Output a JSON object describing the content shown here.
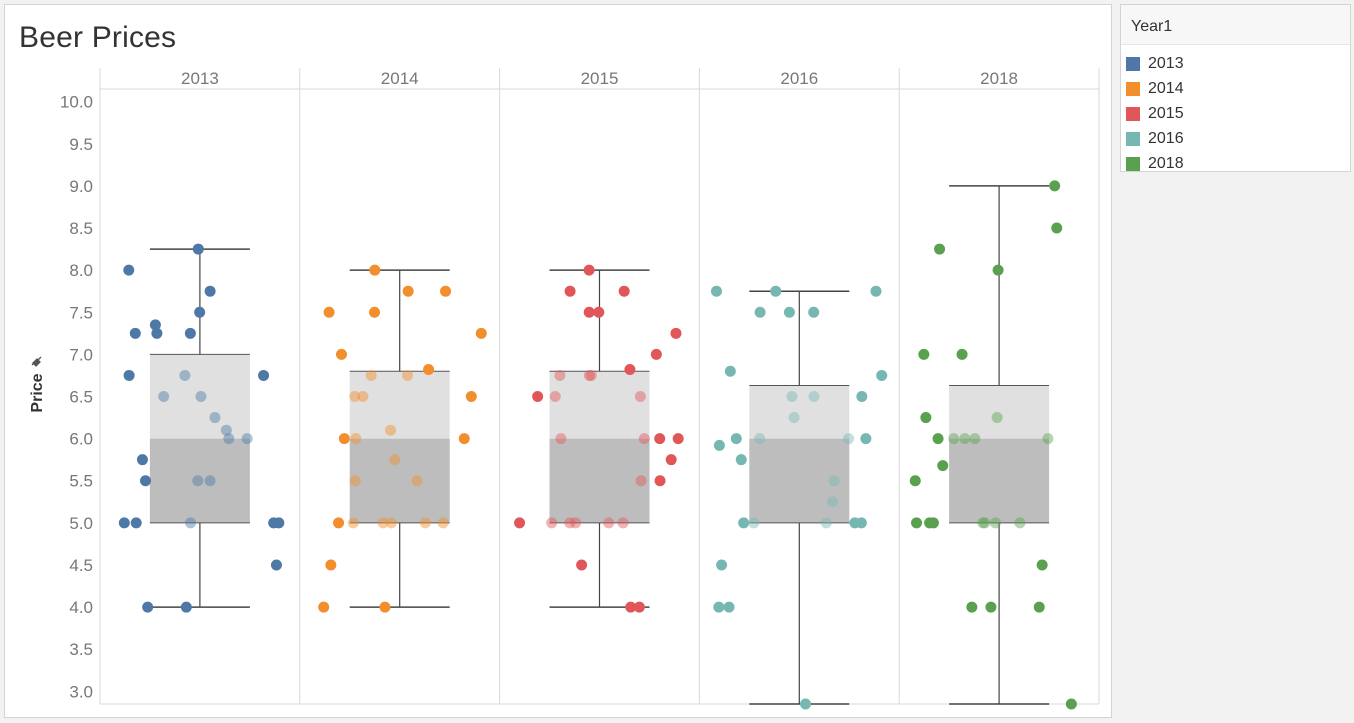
{
  "title": "Beer Prices",
  "legend": {
    "title": "Year1",
    "items": [
      {
        "label": "2013",
        "color": "#4e79a7"
      },
      {
        "label": "2014",
        "color": "#f28e2b"
      },
      {
        "label": "2015",
        "color": "#e15759"
      },
      {
        "label": "2016",
        "color": "#76b7b2"
      },
      {
        "label": "2018",
        "color": "#59a14f"
      }
    ]
  },
  "chart_data": {
    "type": "scatter",
    "subtype": "box-and-whisker with jittered points",
    "title": "Beer Prices",
    "ylabel": "Price",
    "ylabel_icon": "pin-icon",
    "ylim": [
      2.85,
      10.15
    ],
    "yticks": [
      "10.0",
      "9.5",
      "9.0",
      "8.5",
      "8.0",
      "7.5",
      "7.0",
      "6.5",
      "6.0",
      "5.5",
      "5.0",
      "4.5",
      "4.0",
      "3.5",
      "3.0"
    ],
    "grid": false,
    "legend_position": "right",
    "categories": [
      "2013",
      "2014",
      "2015",
      "2016",
      "2018"
    ],
    "series": [
      {
        "name": "2013",
        "color": "#4e79a7",
        "box": {
          "whisker_low": 4.0,
          "q1": 5.0,
          "median": 6.0,
          "q3": 7.0,
          "whisker_high": 8.25
        },
        "values": [
          8.25,
          7.75,
          7.25,
          7.25,
          7.25,
          6.5,
          6.75,
          6.75,
          6.25,
          6.75,
          6.5,
          6.0,
          6.1,
          8.0,
          7.5,
          7.35,
          6.0,
          5.75,
          5.5,
          5.5,
          5.5,
          5.0,
          5.0,
          5.0,
          5.0,
          5.0,
          4.5,
          4.0,
          4.0
        ]
      },
      {
        "name": "2014",
        "color": "#f28e2b",
        "box": {
          "whisker_low": 4.0,
          "q1": 5.0,
          "median": 6.0,
          "q3": 6.8,
          "whisker_high": 8.0
        },
        "values": [
          7.75,
          6.82,
          6.5,
          6.0,
          7.25,
          6.1,
          6.5,
          6.75,
          6.75,
          7.0,
          7.75,
          8.0,
          7.5,
          7.5,
          6.5,
          6.0,
          6.0,
          5.75,
          5.5,
          5.5,
          5.0,
          5.0,
          5.0,
          5.0,
          5.0,
          5.0,
          4.5,
          4.0,
          4.0
        ]
      },
      {
        "name": "2015",
        "color": "#e15759",
        "box": {
          "whisker_low": 4.0,
          "q1": 5.0,
          "median": 6.0,
          "q3": 6.8,
          "whisker_high": 8.0
        },
        "values": [
          6.82,
          7.75,
          7.25,
          7.75,
          8.0,
          7.5,
          7.5,
          7.0,
          6.75,
          6.75,
          6.75,
          6.5,
          6.5,
          6.5,
          6.0,
          6.0,
          6.0,
          6.0,
          5.75,
          5.5,
          5.5,
          5.0,
          5.0,
          5.0,
          5.0,
          5.0,
          5.0,
          4.5,
          4.0,
          4.0
        ]
      },
      {
        "name": "2016",
        "color": "#76b7b2",
        "box": {
          "whisker_low": 2.85,
          "q1": 5.0,
          "median": 6.0,
          "q3": 6.63,
          "whisker_high": 7.75
        },
        "values": [
          7.5,
          7.75,
          7.75,
          7.75,
          7.5,
          7.5,
          6.8,
          6.75,
          6.5,
          6.5,
          6.5,
          6.25,
          6.0,
          6.0,
          6.0,
          6.0,
          5.92,
          5.75,
          5.5,
          5.25,
          5.0,
          5.0,
          5.0,
          5.0,
          5.0,
          4.5,
          4.0,
          4.0,
          2.85
        ]
      },
      {
        "name": "2018",
        "color": "#59a14f",
        "box": {
          "whisker_low": 2.85,
          "q1": 5.0,
          "median": 6.0,
          "q3": 6.63,
          "whisker_high": 9.0
        },
        "values": [
          9.0,
          8.5,
          8.25,
          8.0,
          7.0,
          7.0,
          6.25,
          6.25,
          6.0,
          6.0,
          6.0,
          6.0,
          6.0,
          5.68,
          5.5,
          5.0,
          5.0,
          5.0,
          5.0,
          5.0,
          5.0,
          5.0,
          4.5,
          4.0,
          4.0,
          4.0,
          2.85
        ]
      }
    ]
  }
}
